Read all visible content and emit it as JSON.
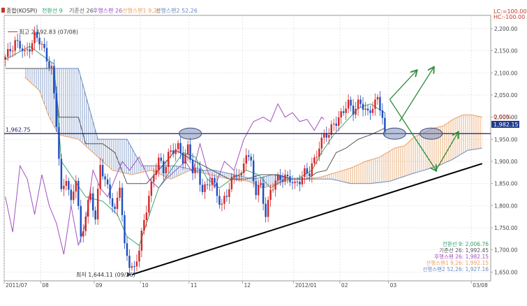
{
  "header": {
    "ticker": "종합(KOSPI)",
    "indicators": [
      {
        "label": "전환선 9",
        "color": "#2a9d6b"
      },
      {
        "label": "기준선 26",
        "color": "#555555"
      },
      {
        "label": "후행스팬 26",
        "color": "#a050c0"
      },
      {
        "label": "선행스팬1 9,26",
        "color": "#e8a060"
      },
      {
        "label": "선행스팬2 52,26",
        "color": "#6a8ac0"
      }
    ],
    "lc": "LC:=100.00",
    "hc": "HC:-100.00"
  },
  "chart_data": {
    "type": "candlestick",
    "y_ticks": [
      2200,
      2150,
      2100,
      2050,
      2000,
      1950,
      1900,
      1850,
      1800,
      1750,
      1700,
      1650
    ],
    "y_tick_labels": [
      "2,200.00",
      "2,150.00",
      "2,100.00",
      "2,050.00",
      "2,000.00",
      "1,950.00",
      "1,900.00",
      "1,850.00",
      "1,800.00",
      "1,750.00",
      "1,700.00",
      "1,650.00"
    ],
    "ylim": [
      1630,
      2230
    ],
    "x_labels": [
      {
        "label": "2011/07",
        "i": 0
      },
      {
        "label": "08",
        "i": 15
      },
      {
        "label": "09",
        "i": 37
      },
      {
        "label": "10",
        "i": 56
      },
      {
        "label": "11",
        "i": 76
      },
      {
        "label": "12",
        "i": 98
      },
      {
        "label": "2012/01",
        "i": 119
      },
      {
        "label": "02",
        "i": 138
      },
      {
        "label": "03",
        "i": 158
      },
      {
        "label": "03/08",
        "i": 192
      }
    ],
    "n_slots": 200,
    "close_anchors": [
      [
        0,
        2130
      ],
      [
        4,
        2175
      ],
      [
        8,
        2140
      ],
      [
        12,
        2185
      ],
      [
        16,
        2150
      ],
      [
        19,
        2110
      ],
      [
        21,
        1980
      ],
      [
        23,
        1830
      ],
      [
        25,
        1870
      ],
      [
        27,
        1800
      ],
      [
        29,
        1860
      ],
      [
        31,
        1730
      ],
      [
        33,
        1780
      ],
      [
        35,
        1820
      ],
      [
        37,
        1770
      ],
      [
        39,
        1900
      ],
      [
        41,
        1850
      ],
      [
        43,
        1820
      ],
      [
        45,
        1790
      ],
      [
        47,
        1850
      ],
      [
        49,
        1700
      ],
      [
        51,
        1670
      ],
      [
        53,
        1660
      ],
      [
        55,
        1700
      ],
      [
        57,
        1760
      ],
      [
        59,
        1830
      ],
      [
        61,
        1870
      ],
      [
        63,
        1900
      ],
      [
        65,
        1880
      ],
      [
        67,
        1920
      ],
      [
        69,
        1920
      ],
      [
        71,
        1930
      ],
      [
        73,
        1910
      ],
      [
        75,
        1930
      ],
      [
        77,
        1875
      ],
      [
        79,
        1880
      ],
      [
        81,
        1840
      ],
      [
        83,
        1840
      ],
      [
        85,
        1860
      ],
      [
        87,
        1830
      ],
      [
        89,
        1800
      ],
      [
        91,
        1820
      ],
      [
        93,
        1860
      ],
      [
        95,
        1880
      ],
      [
        97,
        1860
      ],
      [
        99,
        1920
      ],
      [
        101,
        1900
      ],
      [
        103,
        1830
      ],
      [
        105,
        1840
      ],
      [
        107,
        1780
      ],
      [
        109,
        1840
      ],
      [
        111,
        1850
      ],
      [
        113,
        1860
      ],
      [
        115,
        1870
      ],
      [
        117,
        1860
      ],
      [
        119,
        1840
      ],
      [
        121,
        1860
      ],
      [
        123,
        1880
      ],
      [
        125,
        1870
      ],
      [
        127,
        1900
      ],
      [
        129,
        1940
      ],
      [
        131,
        1960
      ],
      [
        133,
        1955
      ],
      [
        135,
        1990
      ],
      [
        137,
        2000
      ],
      [
        139,
        2010
      ],
      [
        141,
        2030
      ],
      [
        143,
        2020
      ],
      [
        145,
        2030
      ],
      [
        147,
        2020
      ],
      [
        149,
        2010
      ],
      [
        151,
        2030
      ],
      [
        153,
        2035
      ],
      [
        155,
        2000
      ],
      [
        156,
        1960
      ]
    ],
    "kijun_anchors": [
      [
        0,
        2110
      ],
      [
        20,
        2110
      ],
      [
        22,
        2000
      ],
      [
        30,
        2000
      ],
      [
        33,
        1940
      ],
      [
        40,
        1940
      ],
      [
        45,
        1920
      ],
      [
        50,
        1850
      ],
      [
        58,
        1850
      ],
      [
        63,
        1880
      ],
      [
        70,
        1925
      ],
      [
        78,
        1900
      ],
      [
        85,
        1880
      ],
      [
        92,
        1860
      ],
      [
        99,
        1860
      ],
      [
        105,
        1870
      ],
      [
        112,
        1870
      ],
      [
        118,
        1860
      ],
      [
        124,
        1860
      ],
      [
        128,
        1875
      ],
      [
        132,
        1880
      ],
      [
        136,
        1920
      ],
      [
        140,
        1930
      ],
      [
        145,
        1950
      ],
      [
        150,
        1960
      ],
      [
        156,
        1975
      ]
    ],
    "tenkan_anchors": [
      [
        0,
        2130
      ],
      [
        10,
        2160
      ],
      [
        20,
        2120
      ],
      [
        23,
        1900
      ],
      [
        28,
        1860
      ],
      [
        33,
        1820
      ],
      [
        40,
        1810
      ],
      [
        46,
        1780
      ],
      [
        50,
        1730
      ],
      [
        55,
        1710
      ],
      [
        58,
        1760
      ],
      [
        63,
        1840
      ],
      [
        68,
        1880
      ],
      [
        73,
        1920
      ],
      [
        78,
        1910
      ],
      [
        83,
        1860
      ],
      [
        88,
        1840
      ],
      [
        93,
        1860
      ],
      [
        99,
        1880
      ],
      [
        104,
        1870
      ],
      [
        109,
        1840
      ],
      [
        115,
        1860
      ],
      [
        120,
        1860
      ],
      [
        126,
        1880
      ],
      [
        130,
        1920
      ],
      [
        135,
        1960
      ],
      [
        140,
        1990
      ],
      [
        145,
        2020
      ],
      [
        150,
        2030
      ],
      [
        156,
        2010
      ]
    ],
    "chikou_anchors": [
      [
        0,
        1820
      ],
      [
        3,
        1740
      ],
      [
        6,
        1890
      ],
      [
        9,
        1860
      ],
      [
        12,
        1780
      ],
      [
        15,
        1870
      ],
      [
        18,
        1800
      ],
      [
        21,
        1760
      ],
      [
        24,
        1690
      ],
      [
        27,
        1800
      ],
      [
        30,
        1710
      ],
      [
        33,
        1760
      ],
      [
        36,
        1880
      ],
      [
        39,
        1840
      ],
      [
        42,
        1820
      ],
      [
        45,
        1860
      ],
      [
        48,
        1900
      ],
      [
        51,
        1880
      ],
      [
        55,
        1910
      ],
      [
        59,
        1860
      ],
      [
        63,
        1840
      ],
      [
        66,
        1860
      ],
      [
        70,
        1880
      ],
      [
        74,
        1900
      ],
      [
        77,
        1875
      ],
      [
        80,
        1940
      ],
      [
        83,
        1880
      ],
      [
        86,
        1840
      ],
      [
        90,
        1900
      ],
      [
        94,
        1880
      ],
      [
        98,
        1950
      ],
      [
        102,
        1990
      ],
      [
        106,
        2000
      ],
      [
        109,
        1990
      ],
      [
        112,
        2030
      ],
      [
        115,
        2000
      ],
      [
        118,
        2010
      ],
      [
        121,
        1990
      ],
      [
        124,
        1995
      ],
      [
        127,
        1970
      ],
      [
        130,
        2000
      ],
      [
        131,
        1995
      ]
    ],
    "span1_anchors": [
      [
        8,
        2090
      ],
      [
        14,
        2060
      ],
      [
        18,
        2000
      ],
      [
        22,
        1960
      ],
      [
        30,
        1950
      ],
      [
        38,
        1910
      ],
      [
        44,
        1880
      ],
      [
        52,
        1870
      ],
      [
        60,
        1880
      ],
      [
        68,
        1860
      ],
      [
        76,
        1880
      ],
      [
        84,
        1870
      ],
      [
        92,
        1860
      ],
      [
        100,
        1855
      ],
      [
        106,
        1840
      ],
      [
        112,
        1850
      ],
      [
        118,
        1860
      ],
      [
        124,
        1860
      ],
      [
        130,
        1865
      ],
      [
        136,
        1875
      ],
      [
        142,
        1885
      ],
      [
        148,
        1900
      ],
      [
        154,
        1910
      ],
      [
        160,
        1930
      ],
      [
        164,
        1935
      ],
      [
        168,
        1955
      ],
      [
        172,
        1965
      ],
      [
        176,
        1975
      ],
      [
        180,
        1980
      ],
      [
        184,
        1995
      ],
      [
        188,
        2005
      ],
      [
        192,
        2005
      ],
      [
        196,
        2000
      ]
    ],
    "span2_anchors": [
      [
        8,
        2110
      ],
      [
        30,
        2110
      ],
      [
        38,
        1950
      ],
      [
        50,
        1950
      ],
      [
        56,
        1890
      ],
      [
        70,
        1890
      ],
      [
        78,
        1880
      ],
      [
        86,
        1880
      ],
      [
        94,
        1870
      ],
      [
        102,
        1860
      ],
      [
        110,
        1870
      ],
      [
        118,
        1860
      ],
      [
        126,
        1860
      ],
      [
        134,
        1860
      ],
      [
        142,
        1850
      ],
      [
        150,
        1850
      ],
      [
        158,
        1855
      ],
      [
        166,
        1870
      ],
      [
        172,
        1880
      ],
      [
        178,
        1890
      ],
      [
        184,
        1905
      ],
      [
        190,
        1925
      ],
      [
        196,
        1930
      ]
    ],
    "level_line": {
      "value": 1962.75,
      "label": "1,962.75"
    },
    "current_price": "1,982.15",
    "current_pct": "0.00%",
    "annotations": {
      "high": {
        "text": "최고 2,192.83 (07/08)",
        "value": 2192.83,
        "i": 1
      },
      "low": {
        "text": "최저 1,644.11 (09/26)",
        "value": 1644.11,
        "i": 52
      }
    },
    "trendline": {
      "from": [
        52,
        1644.11
      ],
      "to": [
        196,
        1895
      ]
    },
    "ellipses": [
      {
        "i": 76,
        "value": 1962.75
      },
      {
        "i": 160,
        "value": 1962.75
      },
      {
        "i": 175,
        "value": 1962.75
      }
    ],
    "arrows": [
      {
        "from": [
          158,
          2040
        ],
        "to": [
          169,
          2105
        ]
      },
      {
        "from": [
          162,
          1990
        ],
        "to": [
          176,
          2112
        ]
      },
      {
        "from": [
          158,
          2040
        ],
        "to": [
          177,
          1880
        ]
      },
      {
        "from": [
          177,
          1880
        ],
        "to": [
          186,
          1965
        ]
      }
    ],
    "bottom_legend": [
      {
        "label": "전환선 9: 2,006.76",
        "color": "#2a9d6b"
      },
      {
        "label": "기준선 26: 1,992.45",
        "color": "#555555"
      },
      {
        "label": "후행스팬 26: 1,982.15",
        "color": "#a050c0"
      },
      {
        "label": "선행스팬1 9,26: 1,992.15",
        "color": "#e8a060"
      },
      {
        "label": "선행스팬2 52,26: 1,927.16",
        "color": "#6a8ac0"
      }
    ]
  }
}
